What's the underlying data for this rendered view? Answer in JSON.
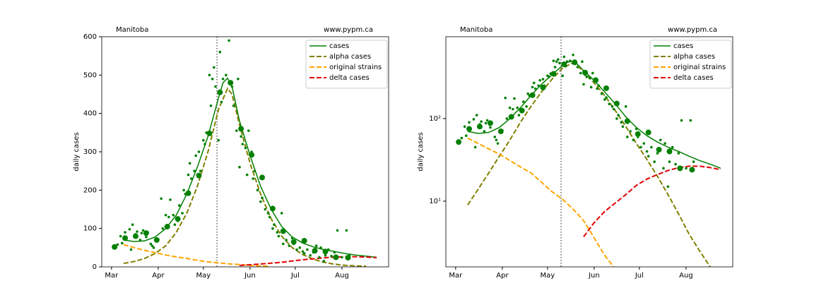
{
  "chart_data": [
    {
      "type": "line",
      "annotation_left": "Manitoba",
      "annotation_right": "www.pypm.ca",
      "ylabel": "daily cases",
      "xlim": [
        -6.5,
        184
      ],
      "xticks": [
        {
          "value": 0,
          "label": "Mar"
        },
        {
          "value": 31,
          "label": "Apr"
        },
        {
          "value": 61,
          "label": "May"
        },
        {
          "value": 92,
          "label": "Jun"
        },
        {
          "value": 122,
          "label": "Jul"
        },
        {
          "value": 153,
          "label": "Aug"
        }
      ],
      "ylim": [
        0,
        600
      ],
      "yticks": [
        0,
        100,
        200,
        300,
        400,
        500,
        600
      ],
      "yscale": "linear",
      "vline": 70,
      "legend": "upper right",
      "series": [
        {
          "name": "cases",
          "color": "#008000",
          "dash": "solid",
          "x": [
            8,
            15,
            22,
            29,
            36,
            43,
            50,
            57,
            64,
            71,
            74,
            77,
            80,
            85,
            92,
            99,
            106,
            113,
            120,
            127,
            134,
            141,
            148,
            155,
            162,
            169,
            176
          ],
          "values": [
            70,
            66,
            68,
            78,
            100,
            135,
            190,
            260,
            340,
            440,
            480,
            492,
            470,
            380,
            290,
            210,
            150,
            105,
            78,
            62,
            52,
            45,
            40,
            35,
            31,
            28,
            25
          ]
        },
        {
          "name": "alpha cases",
          "color": "#808000",
          "dash": "dashed",
          "x": [
            8,
            15,
            22,
            29,
            36,
            43,
            50,
            57,
            64,
            71,
            77,
            80,
            85,
            92,
            99,
            106,
            113,
            120,
            127,
            134,
            141,
            148,
            155,
            162,
            169
          ],
          "values": [
            9,
            14,
            22,
            35,
            55,
            90,
            140,
            210,
            300,
            410,
            465,
            450,
            370,
            270,
            190,
            125,
            80,
            50,
            32,
            20,
            12,
            7,
            4,
            2.5,
            1.6
          ]
        },
        {
          "name": "original strains",
          "color": "#ffa500",
          "dash": "dashed",
          "x": [
            8,
            15,
            22,
            29,
            36,
            43,
            50,
            57,
            64,
            71,
            78,
            85,
            92,
            99,
            105
          ],
          "values": [
            58,
            50,
            43,
            37,
            31,
            26,
            22,
            17,
            13,
            10.5,
            8,
            5.8,
            3.6,
            2.2,
            1.6
          ]
        },
        {
          "name": "delta cases",
          "color": "#e00000",
          "dash": "dashed",
          "x": [
            85,
            92,
            99,
            106,
            113,
            120,
            127,
            134,
            141,
            148,
            155,
            162,
            169,
            176
          ],
          "values": [
            3.7,
            5.5,
            7.5,
            9.5,
            12,
            15.5,
            18.5,
            21,
            23.5,
            25.5,
            26.5,
            26.5,
            25.5,
            24
          ]
        }
      ],
      "points": [
        {
          "color": "#008000",
          "size": 1.8,
          "x": [
            4,
            6,
            7,
            9,
            10,
            12,
            13,
            14,
            16,
            17,
            19,
            20,
            21,
            23,
            24,
            26,
            27,
            28,
            31,
            33,
            34,
            36,
            38,
            39,
            41,
            42,
            44,
            45,
            47,
            48,
            49,
            51,
            52,
            53,
            55,
            56,
            58,
            59,
            61,
            62,
            63,
            65,
            66,
            67,
            68,
            69,
            71,
            72,
            73,
            74,
            76,
            78,
            80,
            81,
            83,
            84,
            85,
            86,
            87,
            89,
            90,
            91,
            93,
            94,
            95,
            97,
            99,
            100,
            102,
            104,
            105,
            107,
            108,
            110,
            111,
            113,
            114,
            116,
            118,
            120,
            121,
            123,
            125,
            127,
            128,
            130,
            132,
            134,
            136,
            138,
            139,
            141,
            142,
            144,
            146,
            148,
            150,
            153,
            156,
            158
          ],
          "values": [
            58,
            80,
            62,
            90,
            75,
            98,
            45,
            110,
            85,
            92,
            70,
            88,
            95,
            78,
            90,
            60,
            55,
            50,
            72,
            178,
            100,
            135,
            130,
            175,
            135,
            110,
            120,
            160,
            140,
            200,
            190,
            240,
            270,
            230,
            250,
            290,
            300,
            250,
            330,
            320,
            350,
            500,
            420,
            490,
            520,
            470,
            330,
            560,
            430,
            490,
            500,
            590,
            470,
            420,
            355,
            490,
            260,
            340,
            320,
            310,
            240,
            355,
            300,
            230,
            250,
            200,
            170,
            180,
            150,
            140,
            130,
            100,
            110,
            90,
            80,
            140,
            60,
            70,
            55,
            75,
            60,
            45,
            50,
            40,
            35,
            45,
            30,
            38,
            55,
            25,
            50,
            15,
            30,
            45,
            28,
            38,
            95,
            25,
            95,
            30
          ]
        },
        {
          "color": "#008000",
          "size": 4,
          "x": [
            2,
            9,
            16,
            23,
            30,
            37,
            44,
            51,
            58,
            65,
            72,
            79,
            86,
            93,
            100,
            107,
            114,
            121,
            128,
            135,
            142,
            149,
            157
          ],
          "values": [
            52,
            75,
            80,
            88,
            70,
            105,
            125,
            192,
            238,
            348,
            455,
            480,
            360,
            292,
            233,
            152,
            93,
            65,
            68,
            42,
            40,
            25,
            24
          ]
        }
      ]
    },
    {
      "type": "line",
      "annotation_left": "Manitoba",
      "annotation_right": "www.pypm.ca",
      "ylabel": "daily cases",
      "xlim": [
        -6.5,
        184
      ],
      "xticks": [
        {
          "value": 0,
          "label": "Mar"
        },
        {
          "value": 31,
          "label": "Apr"
        },
        {
          "value": 61,
          "label": "May"
        },
        {
          "value": 92,
          "label": "Jun"
        },
        {
          "value": 122,
          "label": "Jul"
        },
        {
          "value": 153,
          "label": "Aug"
        }
      ],
      "ylim": [
        1.6,
        980
      ],
      "yticks": [
        {
          "value": 10,
          "label": "10¹"
        },
        {
          "value": 100,
          "label": "10²"
        }
      ],
      "yscale": "log",
      "vline": 70,
      "legend": "upper right",
      "series": [
        {
          "name": "cases",
          "color": "#008000",
          "dash": "solid",
          "x": [
            8,
            15,
            22,
            29,
            36,
            43,
            50,
            57,
            64,
            71,
            74,
            77,
            80,
            85,
            92,
            99,
            106,
            113,
            120,
            127,
            134,
            141,
            148,
            155,
            162,
            169,
            176
          ],
          "values": [
            70,
            66,
            68,
            78,
            100,
            135,
            190,
            260,
            340,
            440,
            480,
            492,
            470,
            380,
            290,
            210,
            150,
            105,
            78,
            62,
            52,
            45,
            40,
            35,
            31,
            28,
            25
          ]
        },
        {
          "name": "alpha cases",
          "color": "#808000",
          "dash": "dashed",
          "x": [
            8,
            15,
            22,
            29,
            36,
            43,
            50,
            57,
            64,
            71,
            77,
            80,
            85,
            92,
            99,
            106,
            113,
            120,
            127,
            134,
            141,
            148,
            155,
            162,
            169
          ],
          "values": [
            9,
            14,
            22,
            35,
            55,
            90,
            140,
            210,
            300,
            410,
            465,
            450,
            370,
            270,
            190,
            125,
            80,
            50,
            32,
            20,
            12,
            7,
            4,
            2.5,
            1.6
          ]
        },
        {
          "name": "original strains",
          "color": "#ffa500",
          "dash": "dashed",
          "x": [
            8,
            15,
            22,
            29,
            36,
            43,
            50,
            57,
            64,
            71,
            78,
            85,
            92,
            99,
            105
          ],
          "values": [
            58,
            50,
            43,
            37,
            31,
            26,
            22,
            17,
            13,
            10.5,
            8,
            5.8,
            3.6,
            2.2,
            1.6
          ]
        },
        {
          "name": "delta cases",
          "color": "#e00000",
          "dash": "dashed",
          "x": [
            85,
            92,
            99,
            106,
            113,
            120,
            127,
            134,
            141,
            148,
            155,
            162,
            169,
            176
          ],
          "values": [
            3.7,
            5.5,
            7.5,
            9.5,
            12,
            15.5,
            18.5,
            21,
            23.5,
            25.5,
            26.5,
            26.5,
            25.5,
            24
          ]
        }
      ],
      "points": [
        {
          "color": "#008000",
          "size": 1.8,
          "x": [
            4,
            6,
            7,
            9,
            10,
            12,
            13,
            14,
            16,
            17,
            19,
            20,
            21,
            23,
            24,
            26,
            27,
            28,
            31,
            33,
            34,
            36,
            38,
            39,
            41,
            42,
            44,
            45,
            47,
            48,
            49,
            51,
            52,
            53,
            55,
            56,
            58,
            59,
            61,
            62,
            63,
            65,
            66,
            67,
            68,
            69,
            71,
            72,
            73,
            74,
            76,
            78,
            80,
            81,
            83,
            84,
            85,
            86,
            87,
            89,
            90,
            91,
            93,
            94,
            95,
            97,
            99,
            100,
            102,
            104,
            105,
            107,
            108,
            110,
            111,
            113,
            114,
            116,
            118,
            120,
            121,
            123,
            125,
            127,
            128,
            130,
            132,
            134,
            136,
            138,
            139,
            141,
            142,
            144,
            146,
            148,
            150,
            153,
            156,
            158
          ],
          "values": [
            58,
            80,
            62,
            90,
            75,
            98,
            45,
            110,
            85,
            92,
            70,
            88,
            95,
            78,
            90,
            60,
            55,
            50,
            72,
            178,
            100,
            135,
            130,
            175,
            135,
            110,
            120,
            160,
            140,
            200,
            190,
            240,
            270,
            230,
            250,
            290,
            300,
            250,
            330,
            320,
            350,
            500,
            420,
            490,
            520,
            470,
            330,
            560,
            430,
            490,
            500,
            590,
            470,
            420,
            355,
            490,
            260,
            340,
            320,
            310,
            240,
            355,
            300,
            230,
            250,
            200,
            170,
            180,
            150,
            140,
            130,
            100,
            110,
            90,
            80,
            140,
            60,
            70,
            55,
            75,
            60,
            45,
            50,
            40,
            35,
            45,
            30,
            38,
            55,
            25,
            50,
            15,
            30,
            45,
            28,
            38,
            95,
            25,
            95,
            30
          ]
        },
        {
          "color": "#008000",
          "size": 4,
          "x": [
            2,
            9,
            16,
            23,
            30,
            37,
            44,
            51,
            58,
            65,
            72,
            79,
            86,
            93,
            100,
            107,
            114,
            121,
            128,
            135,
            142,
            149,
            157
          ],
          "values": [
            52,
            75,
            80,
            88,
            70,
            105,
            125,
            192,
            238,
            348,
            455,
            480,
            360,
            292,
            233,
            152,
            93,
            65,
            68,
            42,
            40,
            25,
            24
          ]
        }
      ]
    }
  ]
}
